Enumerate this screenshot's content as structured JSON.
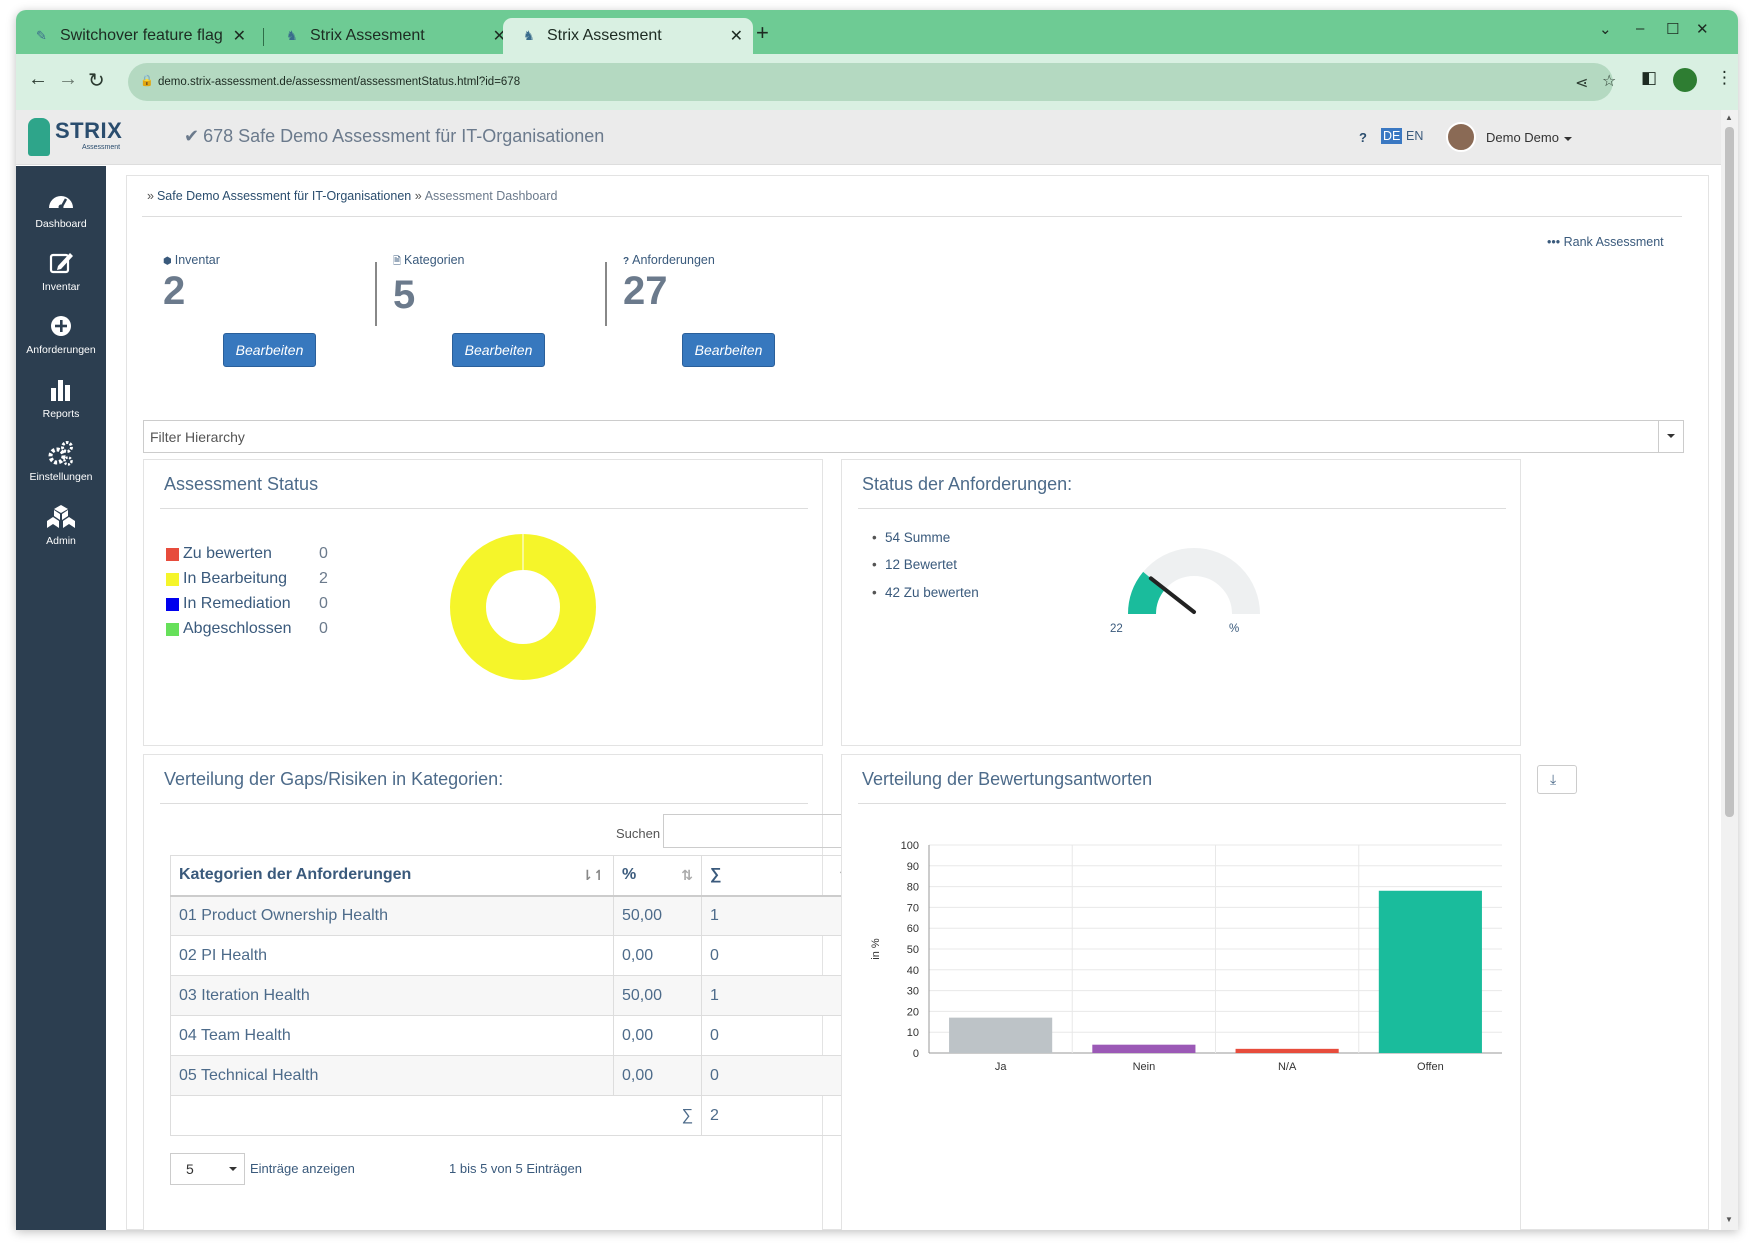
{
  "browser": {
    "tabs": [
      {
        "title": "Switchover  feature  flag"
      },
      {
        "title": "Strix  Assesment"
      },
      {
        "title": "Strix  Assesment"
      }
    ],
    "url": "demo.strix-assessment.de/assessment/assessmentStatus.html?id=678"
  },
  "header": {
    "logo_text": "STRIX",
    "logo_sub": "Assessment",
    "title": "678 Safe Demo Assessment für IT-Organisationen",
    "help": "?",
    "lang_de": "DE",
    "lang_en": "EN",
    "user": "Demo Demo"
  },
  "sidebar": {
    "items": [
      {
        "label": "Dashboard",
        "icon": "dashboard-icon"
      },
      {
        "label": "Inventar",
        "icon": "edit-icon"
      },
      {
        "label": "Anforderungen",
        "icon": "plus-circle-icon"
      },
      {
        "label": "Reports",
        "icon": "bar-chart-icon"
      },
      {
        "label": "Einstellungen",
        "icon": "gears-icon"
      },
      {
        "label": "Admin",
        "icon": "cubes-icon"
      }
    ]
  },
  "breadcrumb": {
    "sep": "»",
    "item1": "Safe Demo Assessment für IT-Organisationen",
    "item2": "Assessment Dashboard"
  },
  "rank_link": "••• Rank Assessment",
  "stats": [
    {
      "label": "Inventar",
      "value": "2",
      "button": "Bearbeiten"
    },
    {
      "label": "Kategorien",
      "value": "5",
      "button": "Bearbeiten"
    },
    {
      "label": "Anforderungen",
      "value": "27",
      "button": "Bearbeiten"
    }
  ],
  "filter_placeholder": "Filter Hierarchy",
  "assessment_status": {
    "title": "Assessment Status",
    "legend": [
      {
        "label": "Zu bewerten",
        "value": "0",
        "color": "#e74c3c"
      },
      {
        "label": "In Bearbeitung",
        "value": "2",
        "color": "#f5f52a"
      },
      {
        "label": "In Remediation",
        "value": "0",
        "color": "#0000ee"
      },
      {
        "label": "Abgeschlossen",
        "value": "0",
        "color": "#66e05a"
      }
    ]
  },
  "req_status": {
    "title": "Status der Anforderungen:",
    "bullets": [
      "54 Summe",
      "12 Bewertet",
      "42 Zu bewerten"
    ],
    "gauge_value": "22",
    "gauge_unit": "%",
    "gauge_percent": 22
  },
  "gaps": {
    "title": "Verteilung der Gaps/Risiken in Kategorien:",
    "search_label": "Suchen",
    "columns": [
      "Kategorien der Anforderungen",
      "%",
      "∑"
    ],
    "rows": [
      [
        "01 Product Ownership Health",
        "50,00",
        "1"
      ],
      [
        "02 PI Health",
        "0,00",
        "0"
      ],
      [
        "03 Iteration Health",
        "50,00",
        "1"
      ],
      [
        "04 Team Health",
        "0,00",
        "0"
      ],
      [
        "05 Technical Health",
        "0,00",
        "0"
      ]
    ],
    "footer_sym": "∑",
    "footer_total": "2",
    "page_size": "5",
    "entries_label": "Einträge anzeigen",
    "info": "1 bis 5 von 5 Einträgen"
  },
  "answers": {
    "title": "Verteilung der Bewertungsantworten"
  },
  "chart_data": {
    "type": "bar",
    "title": "",
    "xlabel": "",
    "ylabel": "in %",
    "ylim": [
      0,
      100
    ],
    "yticks": [
      0,
      10,
      20,
      30,
      40,
      50,
      60,
      70,
      80,
      90,
      100
    ],
    "categories": [
      "Ja",
      "Nein",
      "N/A",
      "Offen"
    ],
    "values": [
      17,
      4,
      2,
      78
    ],
    "colors": [
      "#bdc3c7",
      "#9b59b6",
      "#e74c3c",
      "#1abc9c"
    ],
    "grid": true
  }
}
